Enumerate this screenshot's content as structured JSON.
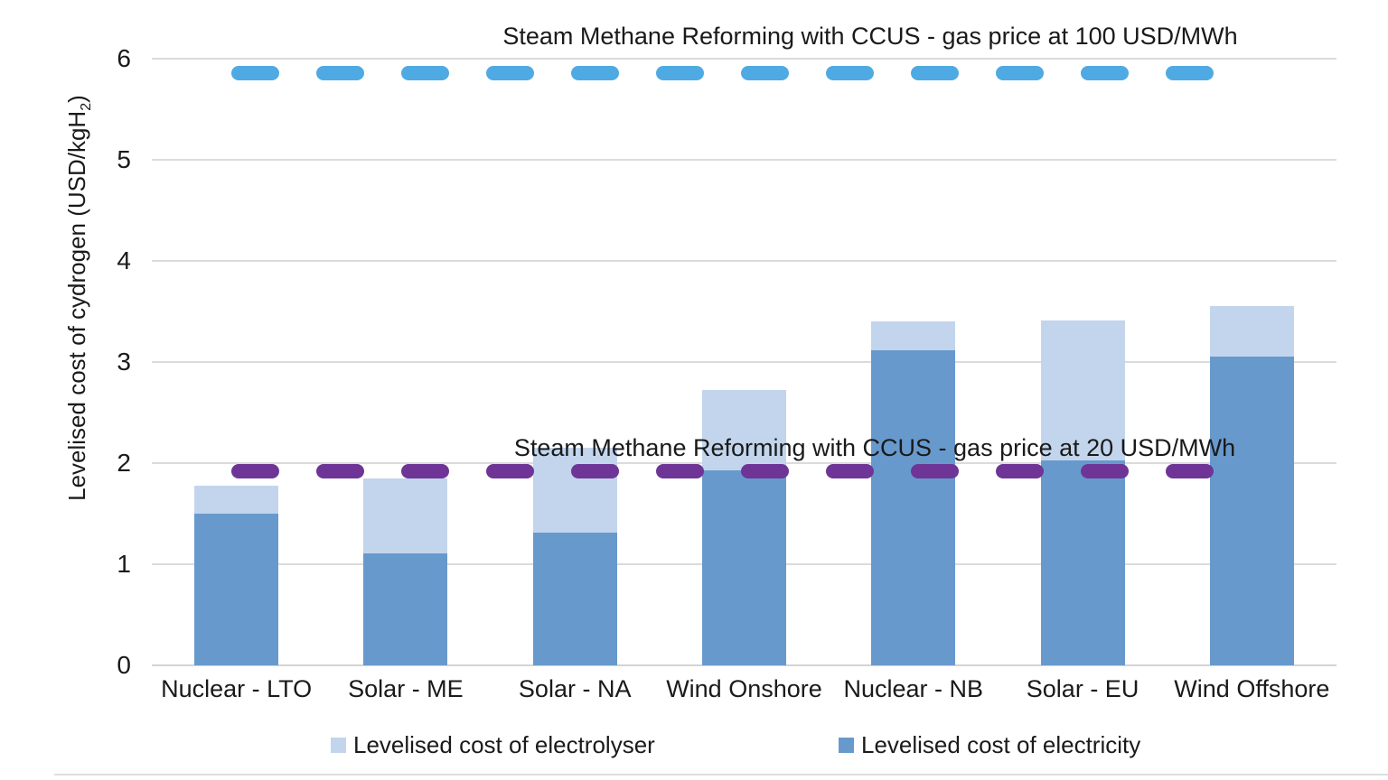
{
  "chart_data": {
    "type": "bar",
    "stacked": true,
    "categories": [
      "Nuclear - LTO",
      "Solar - ME",
      "Solar - NA",
      "Wind Onshore",
      "Nuclear - NB",
      "Solar - EU",
      "Wind Offshore"
    ],
    "series": [
      {
        "name": "Levelised cost of electrolyser",
        "color": "#c2d5ec",
        "values": [
          0.28,
          0.74,
          0.84,
          0.79,
          0.28,
          1.38,
          0.5
        ]
      },
      {
        "name": "Levelised cost of electricity",
        "color": "#6899cd",
        "values": [
          1.5,
          1.11,
          1.31,
          1.93,
          3.12,
          2.03,
          3.05
        ]
      }
    ],
    "reference_lines": [
      {
        "label": "Steam Methane Reforming with CCUS - gas price at 100 USD/MWh",
        "value": 5.86,
        "color": "#4faae3",
        "style": "dashed"
      },
      {
        "label": "Steam Methane Reforming with CCUS - gas price at 20 USD/MWh",
        "value": 1.92,
        "color": "#6e3597",
        "style": "dashed"
      }
    ],
    "ylabel_prefix": "Levelised cost of cydrogen (USD/kgH",
    "ylabel_sub": "2",
    "ylabel_suffix": ")",
    "yticks": [
      0,
      1,
      2,
      3,
      4,
      5,
      6
    ],
    "ylim": [
      0,
      6
    ],
    "grid": true,
    "legend_position": "bottom",
    "colors": {
      "gridline": "#dbdbdb",
      "text": "#1a1a1a",
      "background": "#ffffff"
    }
  }
}
